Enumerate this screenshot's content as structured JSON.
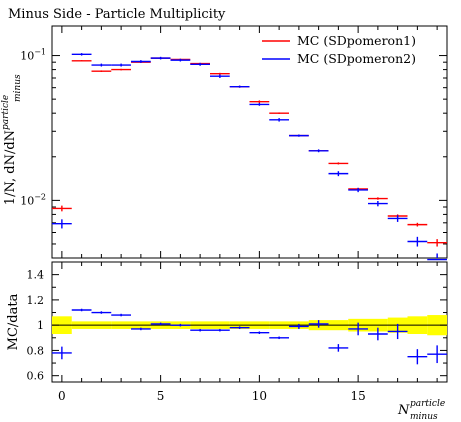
{
  "chart_data": {
    "type": "scatter",
    "title": "Minus Side - Particle Multiplicity",
    "xlabel": "N",
    "xlabel_sup": "particle",
    "xlabel_sub": "minus",
    "ylabel_main": "1/N, dN/dN",
    "ylabel_sup": "particle",
    "ylabel_sub": "minus",
    "ratio_ylabel": "MC/data",
    "x_range": [
      -0.5,
      19.5
    ],
    "main_scale": "log",
    "main_ylim": [
      0.004,
      0.16
    ],
    "main_yticks": [
      {
        "value": 0.01,
        "base": "10",
        "exp": "−2"
      },
      {
        "value": 0.1,
        "base": "10",
        "exp": "−1"
      }
    ],
    "ratio_ylim": [
      0.55,
      1.5
    ],
    "ratio_yticks": [
      "0.6",
      "0.8",
      "1",
      "1.2",
      "1.4"
    ],
    "ratio_ytick_values": [
      0.6,
      0.8,
      1.0,
      1.2,
      1.4
    ],
    "xticks": [
      "0",
      "5",
      "10",
      "15"
    ],
    "xtick_values": [
      0,
      5,
      10,
      15
    ],
    "legend_position": "top-right",
    "x": [
      0,
      1,
      2,
      3,
      4,
      5,
      6,
      7,
      8,
      9,
      10,
      11,
      12,
      13,
      14,
      15,
      16,
      17,
      18,
      19
    ],
    "series": [
      {
        "name": "MC (SDpomeron1)",
        "color": "#ff0000",
        "values": [
          0.0088,
          0.092,
          0.078,
          0.08,
          0.09,
          0.096,
          0.094,
          0.088,
          0.075,
          0.061,
          0.048,
          0.04,
          0.028,
          0.022,
          0.018,
          0.012,
          0.0103,
          0.0078,
          0.0068,
          0.0051
        ],
        "errors": [
          0.0004,
          0.001,
          0.001,
          0.001,
          0.001,
          0.001,
          0.001,
          0.001,
          0.001,
          0.001,
          0.001,
          0.0005,
          0.0004,
          0.0003,
          0.0003,
          0.0002,
          0.0002,
          0.0002,
          0.0002,
          0.0003
        ]
      },
      {
        "name": "MC (SDpomeron2)",
        "color": "#0000ff",
        "values": [
          0.0069,
          0.102,
          0.086,
          0.086,
          0.091,
          0.096,
          0.093,
          0.087,
          0.072,
          0.061,
          0.046,
          0.036,
          0.028,
          0.022,
          0.0153,
          0.0118,
          0.0095,
          0.0075,
          0.0052,
          0.0039
        ],
        "errors": [
          0.0005,
          0.002,
          0.002,
          0.002,
          0.002,
          0.002,
          0.002,
          0.002,
          0.002,
          0.001,
          0.001,
          0.001,
          0.0005,
          0.0005,
          0.0006,
          0.0004,
          0.0004,
          0.0004,
          0.0004,
          0.0004
        ],
        "ratio": [
          0.78,
          1.12,
          1.1,
          1.08,
          0.97,
          1.01,
          1.0,
          0.96,
          0.96,
          0.98,
          0.94,
          0.9,
          0.99,
          1.01,
          0.82,
          0.97,
          0.93,
          0.95,
          0.75,
          0.77
        ],
        "ratio_errors": [
          0.05,
          0.01,
          0.01,
          0.01,
          0.01,
          0.01,
          0.01,
          0.01,
          0.01,
          0.01,
          0.01,
          0.01,
          0.02,
          0.03,
          0.03,
          0.05,
          0.05,
          0.06,
          0.06,
          0.07
        ]
      }
    ],
    "data_band": {
      "color": "#ffff00",
      "half_width": [
        0.07,
        0.03,
        0.03,
        0.03,
        0.03,
        0.03,
        0.03,
        0.03,
        0.03,
        0.03,
        0.03,
        0.03,
        0.03,
        0.04,
        0.04,
        0.05,
        0.05,
        0.06,
        0.07,
        0.08
      ]
    }
  }
}
